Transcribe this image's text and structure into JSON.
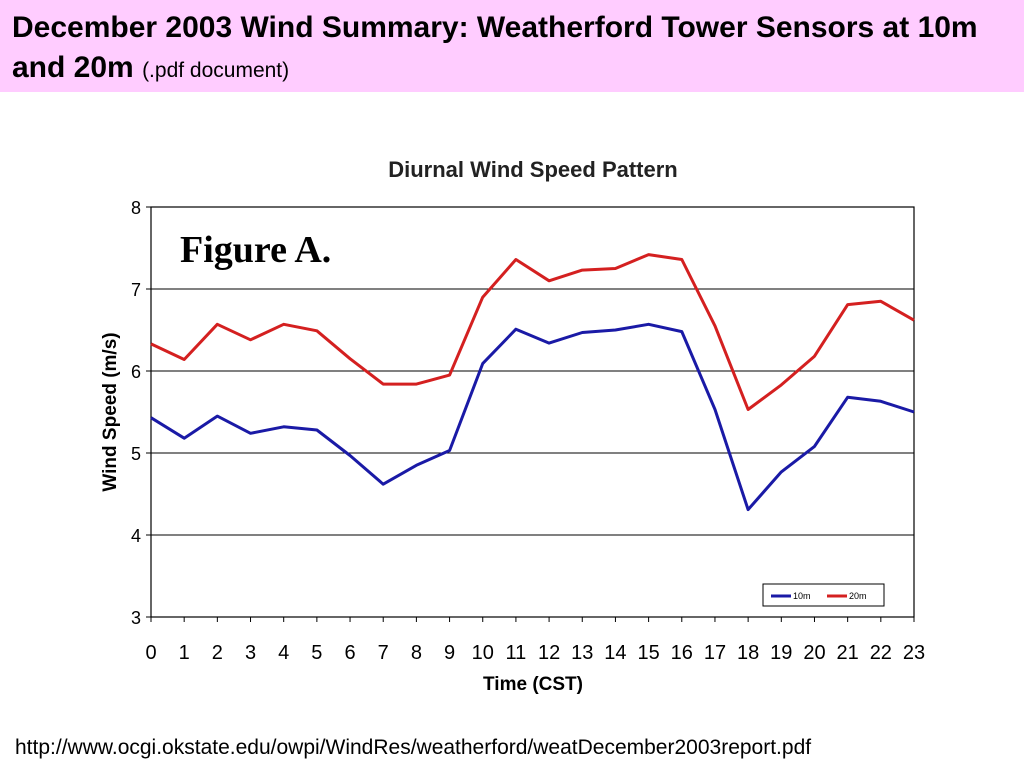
{
  "slide": {
    "title_main": "December 2003 Wind Summary: Weatherford Tower Sensors at 10m and 20m",
    "title_sub": "(.pdf document)",
    "footer_url": "http://www.ocgi.okstate.edu/owpi/WindRes/weatherford/weatDecember2003report.pdf"
  },
  "colors": {
    "banner": "#ffccff",
    "series_10m": "#1a1aa6",
    "series_20m": "#d42020"
  },
  "chart_data": {
    "type": "line",
    "title": "Diurnal Wind Speed Pattern",
    "annotation": "Figure A.",
    "xlabel": "Time (CST)",
    "ylabel": "Wind Speed (m/s)",
    "x": [
      0,
      1,
      2,
      3,
      4,
      5,
      6,
      7,
      8,
      9,
      10,
      11,
      12,
      13,
      14,
      15,
      16,
      17,
      18,
      19,
      20,
      21,
      22,
      23
    ],
    "ylim": [
      3,
      8
    ],
    "yticks": [
      3,
      4,
      5,
      6,
      7,
      8
    ],
    "grid": "horizontal",
    "legend_position": "bottom-right",
    "series": [
      {
        "name": "10m",
        "color": "#1a1aa6",
        "values": [
          5.43,
          5.18,
          5.45,
          5.24,
          5.32,
          5.28,
          4.97,
          4.62,
          4.85,
          5.03,
          6.09,
          6.51,
          6.34,
          6.47,
          6.5,
          6.57,
          6.48,
          5.53,
          4.31,
          4.77,
          5.08,
          5.68,
          5.63,
          5.5
        ]
      },
      {
        "name": "20m",
        "color": "#d42020",
        "values": [
          6.33,
          6.14,
          6.57,
          6.38,
          6.57,
          6.49,
          6.15,
          5.84,
          5.84,
          5.95,
          6.9,
          7.36,
          7.1,
          7.23,
          7.25,
          7.42,
          7.36,
          6.55,
          5.53,
          5.83,
          6.18,
          6.81,
          6.85,
          6.62
        ]
      }
    ]
  }
}
